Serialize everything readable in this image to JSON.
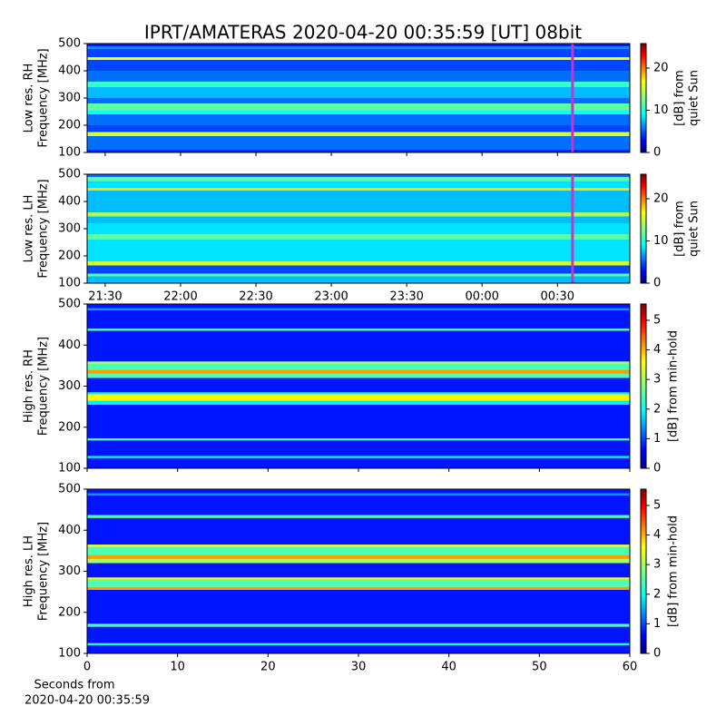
{
  "chart_data": [
    {
      "type": "heatmap",
      "title": "IPRT/AMATERAS 2020-04-20 00:35:59 [UT]   08bit",
      "ylabel": [
        "Low res. RH",
        "Frequency [MHz]"
      ],
      "ylim": [
        100,
        500
      ],
      "yticks": [
        100,
        200,
        300,
        400,
        500
      ],
      "xlim": [
        21.38,
        24.98
      ],
      "colormap": "jet",
      "ybins": [
        100,
        110,
        160,
        175,
        200,
        240,
        255,
        280,
        300,
        340,
        360,
        400,
        440,
        450,
        480,
        490,
        500
      ],
      "values": [
        4,
        6,
        15,
        5,
        6,
        10,
        12,
        6,
        8,
        11,
        6,
        5,
        16,
        5,
        7,
        4
      ],
      "clim": [
        0,
        25.8
      ],
      "cticks": [
        0,
        10,
        20
      ],
      "clabel": [
        "[dB] from",
        "quiet Sun"
      ],
      "marker_x": 24.6,
      "marker_color": "#cc33cc"
    },
    {
      "type": "heatmap",
      "ylabel": [
        "Low res. LH",
        "Frequency [MHz]"
      ],
      "ylim": [
        100,
        500
      ],
      "yticks": [
        100,
        200,
        300,
        400,
        500
      ],
      "xlim": [
        21.38,
        24.98
      ],
      "colormap": "jet",
      "xticks": [
        {
          "value": 21.5,
          "label": "21:30"
        },
        {
          "value": 22,
          "label": "22:00"
        },
        {
          "value": 22.5,
          "label": "22:30"
        },
        {
          "value": 23,
          "label": "23:00"
        },
        {
          "value": 23.5,
          "label": "23:30"
        },
        {
          "value": 24,
          "label": "00:00"
        },
        {
          "value": 24.5,
          "label": "00:30"
        }
      ],
      "ybins": [
        100,
        125,
        135,
        165,
        180,
        230,
        260,
        280,
        320,
        345,
        360,
        400,
        440,
        450,
        475,
        490,
        500
      ],
      "values": [
        8,
        12,
        5,
        15,
        9,
        9,
        12,
        9,
        8,
        14,
        8,
        8,
        17,
        9,
        12,
        6
      ],
      "clim": [
        0,
        25.8
      ],
      "cticks": [
        0,
        10,
        20
      ],
      "clabel": [
        "[dB] from",
        "quiet Sun"
      ],
      "marker_x": 24.6,
      "marker_color": "#cc33cc"
    },
    {
      "type": "heatmap",
      "ylabel": [
        "High res. RH",
        "Frequency [MHz]"
      ],
      "ylim": [
        100,
        500
      ],
      "yticks": [
        100,
        200,
        300,
        400,
        500
      ],
      "xlim": [
        0,
        60
      ],
      "colormap": "jet",
      "ybins": [
        100,
        125,
        130,
        168,
        173,
        255,
        265,
        280,
        285,
        320,
        330,
        340,
        355,
        360,
        435,
        440,
        485,
        490,
        500
      ],
      "values": [
        0.8,
        2,
        0.8,
        2.5,
        0.8,
        2,
        3.5,
        2,
        0.8,
        2.5,
        4,
        2.5,
        3,
        0.8,
        2.5,
        0.8,
        1.5,
        0.8
      ],
      "clim": [
        0,
        5.55
      ],
      "cticks": [
        0,
        1,
        2,
        3,
        4,
        5
      ],
      "clabel": [
        "[dB] from min-hold"
      ]
    },
    {
      "type": "heatmap",
      "ylabel": [
        "High res. LH",
        "Frequency [MHz]"
      ],
      "ylim": [
        100,
        500
      ],
      "yticks": [
        100,
        200,
        300,
        400,
        500
      ],
      "xlim": [
        0,
        60
      ],
      "xticks": [
        0,
        10,
        20,
        30,
        40,
        50,
        60
      ],
      "xlabel": [
        "Seconds from",
        "2020-04-20 00:35:59"
      ],
      "colormap": "jet",
      "ybins": [
        100,
        120,
        125,
        165,
        172,
        255,
        262,
        280,
        285,
        320,
        330,
        340,
        360,
        365,
        430,
        437,
        485,
        490,
        500
      ],
      "values": [
        0.8,
        2.2,
        0.8,
        2.5,
        0.8,
        4,
        2.5,
        3.5,
        0.8,
        3,
        4,
        2.5,
        3.5,
        0.8,
        2.5,
        0.8,
        1.5,
        0.8
      ],
      "clim": [
        0,
        5.55
      ],
      "cticks": [
        0,
        1,
        2,
        3,
        4,
        5
      ],
      "clabel": [
        "[dB] from min-hold"
      ]
    }
  ]
}
